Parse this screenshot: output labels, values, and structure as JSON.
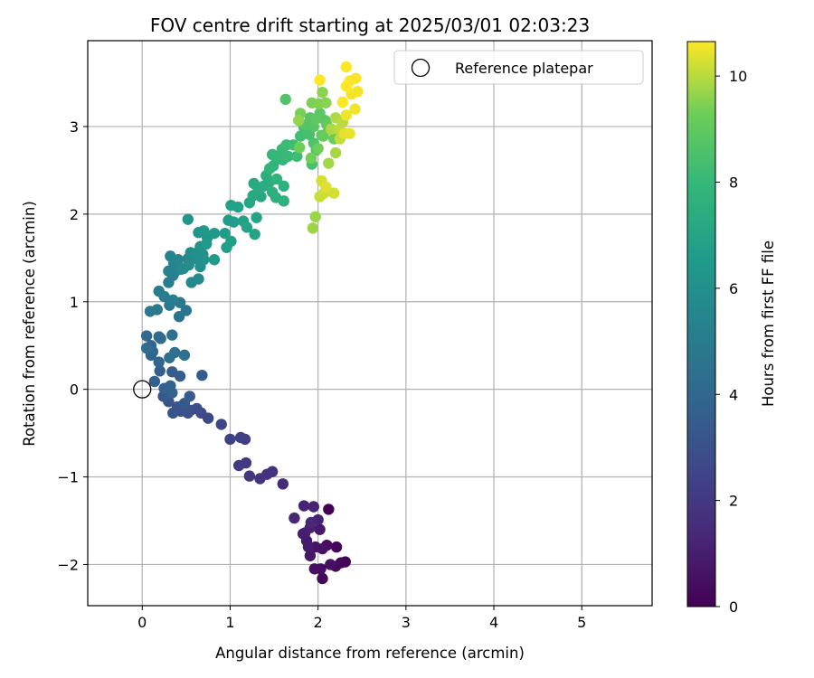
{
  "chart_data": {
    "type": "scatter",
    "title": "FOV centre drift starting at 2025/03/01 02:03:23",
    "xlabel": "Angular distance from reference (arcmin)",
    "ylabel": "Rotation from reference (arcmin)",
    "xlim": [
      -0.62,
      5.8
    ],
    "ylim": [
      -2.47,
      3.98
    ],
    "xticks": [
      0,
      1,
      2,
      3,
      4,
      5
    ],
    "yticks": [
      -2,
      -1,
      0,
      1,
      2,
      3
    ],
    "grid": true,
    "colormap": "viridis",
    "colorbar": {
      "label": "Hours from first FF file",
      "range": [
        0,
        10.65
      ],
      "ticks": [
        0,
        2,
        4,
        6,
        8,
        10
      ]
    },
    "legend": {
      "placement": "top-right",
      "entries": [
        {
          "label": "Reference platepar",
          "marker": "open-circle"
        }
      ]
    },
    "reference_point": {
      "label": "Reference platepar",
      "x": 0,
      "y": 0
    },
    "series": [
      {
        "columns": [
          "x",
          "y",
          "hours"
        ],
        "points": [
          [
            2.12,
            -1.37,
            0.05
          ],
          [
            2.21,
            -1.8,
            0.1
          ],
          [
            2.31,
            -1.97,
            0.15
          ],
          [
            2.26,
            -1.98,
            0.2
          ],
          [
            2.05,
            -2.16,
            0.25
          ],
          [
            2.2,
            -2.02,
            0.3
          ],
          [
            2.1,
            -1.78,
            0.35
          ],
          [
            2.03,
            -2.05,
            0.45
          ],
          [
            1.96,
            -2.05,
            0.5
          ],
          [
            2.14,
            -2.0,
            0.55
          ],
          [
            2.05,
            -1.82,
            0.6
          ],
          [
            1.97,
            -1.8,
            0.65
          ],
          [
            1.91,
            -1.9,
            0.7
          ],
          [
            2.02,
            -1.6,
            0.8
          ],
          [
            1.87,
            -1.73,
            0.85
          ],
          [
            1.89,
            -1.8,
            0.9
          ],
          [
            1.85,
            -1.64,
            0.95
          ],
          [
            1.83,
            -1.65,
            1.0
          ],
          [
            1.91,
            -1.58,
            1.05
          ],
          [
            2.0,
            -1.49,
            1.1
          ],
          [
            1.95,
            -1.34,
            1.15
          ],
          [
            1.84,
            -1.33,
            1.2
          ],
          [
            1.73,
            -1.47,
            1.3
          ],
          [
            1.92,
            -1.52,
            1.35
          ],
          [
            1.6,
            -1.08,
            1.5
          ],
          [
            1.48,
            -0.94,
            1.6
          ],
          [
            1.42,
            -0.97,
            1.7
          ],
          [
            1.34,
            -1.02,
            1.8
          ],
          [
            1.22,
            -0.99,
            1.9
          ],
          [
            1.18,
            -0.84,
            2.0
          ],
          [
            1.1,
            -0.87,
            2.1
          ],
          [
            1.17,
            -0.57,
            2.2
          ],
          [
            1.12,
            -0.55,
            2.3
          ],
          [
            1.0,
            -0.57,
            2.4
          ],
          [
            0.9,
            -0.4,
            2.5
          ],
          [
            0.75,
            -0.33,
            2.6
          ],
          [
            0.67,
            -0.27,
            2.7
          ],
          [
            0.62,
            -0.22,
            2.8
          ],
          [
            0.55,
            -0.24,
            2.9
          ],
          [
            0.52,
            -0.27,
            3.0
          ],
          [
            0.44,
            -0.25,
            3.05
          ],
          [
            0.4,
            -0.2,
            3.1
          ],
          [
            0.35,
            -0.27,
            3.15
          ],
          [
            0.3,
            -0.14,
            3.2
          ],
          [
            0.24,
            -0.08,
            3.3
          ],
          [
            0.48,
            -0.16,
            3.35
          ],
          [
            0.68,
            0.16,
            3.4
          ],
          [
            0.54,
            -0.08,
            3.45
          ],
          [
            0.43,
            0.15,
            3.5
          ],
          [
            0.34,
            0.2,
            3.55
          ],
          [
            0.2,
            0.21,
            3.6
          ],
          [
            0.14,
            0.09,
            3.65
          ],
          [
            0.32,
            0.04,
            3.7
          ],
          [
            0.25,
            0.01,
            3.75
          ],
          [
            0.34,
            -0.04,
            3.8
          ],
          [
            0.12,
            0.43,
            3.85
          ],
          [
            0.19,
            0.31,
            3.9
          ],
          [
            0.1,
            0.39,
            3.95
          ],
          [
            0.05,
            0.61,
            4.0
          ],
          [
            0.1,
            0.5,
            4.05
          ],
          [
            0.19,
            0.6,
            4.1
          ],
          [
            0.21,
            0.58,
            4.15
          ],
          [
            0.05,
            0.47,
            4.2
          ],
          [
            0.31,
            0.36,
            4.3
          ],
          [
            0.37,
            0.42,
            4.4
          ],
          [
            0.48,
            0.39,
            4.45
          ],
          [
            0.34,
            0.62,
            4.5
          ],
          [
            0.42,
            0.83,
            4.6
          ],
          [
            0.5,
            0.9,
            4.65
          ],
          [
            0.43,
            0.99,
            4.75
          ],
          [
            0.31,
            0.96,
            4.8
          ],
          [
            0.09,
            0.89,
            4.85
          ],
          [
            0.17,
            0.91,
            4.9
          ],
          [
            0.19,
            1.12,
            5.0
          ],
          [
            0.25,
            1.06,
            5.05
          ],
          [
            0.35,
            1.02,
            5.1
          ],
          [
            0.3,
            1.22,
            5.15
          ],
          [
            0.35,
            1.3,
            5.2
          ],
          [
            0.3,
            1.35,
            5.25
          ],
          [
            0.37,
            1.34,
            5.3
          ],
          [
            0.32,
            1.52,
            5.35
          ],
          [
            0.36,
            1.44,
            5.45
          ],
          [
            0.41,
            1.48,
            5.5
          ],
          [
            0.52,
            1.49,
            5.55
          ],
          [
            0.44,
            1.37,
            5.6
          ],
          [
            0.56,
            1.22,
            5.65
          ],
          [
            0.64,
            1.26,
            5.7
          ],
          [
            0.47,
            1.38,
            5.75
          ],
          [
            0.53,
            1.42,
            5.8
          ],
          [
            0.55,
            1.56,
            5.85
          ],
          [
            0.62,
            1.49,
            5.9
          ],
          [
            0.6,
            1.55,
            5.95
          ],
          [
            0.69,
            1.54,
            6.0
          ],
          [
            0.66,
            1.4,
            6.05
          ],
          [
            0.7,
            1.48,
            6.1
          ],
          [
            0.66,
            1.63,
            6.15
          ],
          [
            0.74,
            1.73,
            6.2
          ],
          [
            0.64,
            1.79,
            6.25
          ],
          [
            0.52,
            1.94,
            6.3
          ],
          [
            0.7,
            1.81,
            6.35
          ],
          [
            0.82,
            1.78,
            6.4
          ],
          [
            0.73,
            1.66,
            6.45
          ],
          [
            0.82,
            1.48,
            6.5
          ],
          [
            0.94,
            1.78,
            6.55
          ],
          [
            0.98,
            1.93,
            6.6
          ],
          [
            1.04,
            1.91,
            6.65
          ],
          [
            0.96,
            1.62,
            6.7
          ],
          [
            1.01,
            1.69,
            6.75
          ],
          [
            1.01,
            2.1,
            6.8
          ],
          [
            1.09,
            2.08,
            6.85
          ],
          [
            1.15,
            1.92,
            6.9
          ],
          [
            1.19,
            1.85,
            6.95
          ],
          [
            1.28,
            1.77,
            7.0
          ],
          [
            1.3,
            1.96,
            7.05
          ],
          [
            1.22,
            2.13,
            7.1
          ],
          [
            1.26,
            2.21,
            7.15
          ],
          [
            1.35,
            2.2,
            7.2
          ],
          [
            1.27,
            2.35,
            7.25
          ],
          [
            1.32,
            2.29,
            7.3
          ],
          [
            1.38,
            2.32,
            7.35
          ],
          [
            1.45,
            2.37,
            7.4
          ],
          [
            1.41,
            2.44,
            7.45
          ],
          [
            1.48,
            2.25,
            7.5
          ],
          [
            1.52,
            2.19,
            7.55
          ],
          [
            1.61,
            2.32,
            7.6
          ],
          [
            1.61,
            2.15,
            7.65
          ],
          [
            1.53,
            2.4,
            7.7
          ],
          [
            1.49,
            2.55,
            7.75
          ],
          [
            1.45,
            2.52,
            7.8
          ],
          [
            1.53,
            2.62,
            7.85
          ],
          [
            1.6,
            2.62,
            7.9
          ],
          [
            1.48,
            2.68,
            7.95
          ],
          [
            1.53,
            2.66,
            8.0
          ],
          [
            1.59,
            2.74,
            8.05
          ],
          [
            1.66,
            2.66,
            8.1
          ],
          [
            1.64,
            2.79,
            8.15
          ],
          [
            1.76,
            2.66,
            8.2
          ],
          [
            1.72,
            2.79,
            8.25
          ],
          [
            1.8,
            2.89,
            8.3
          ],
          [
            1.84,
            2.99,
            8.35
          ],
          [
            1.9,
            2.91,
            8.4
          ],
          [
            1.94,
            3.02,
            8.45
          ],
          [
            1.93,
            2.57,
            8.5
          ],
          [
            1.98,
            2.73,
            8.55
          ],
          [
            1.95,
            2.81,
            8.6
          ],
          [
            1.63,
            3.31,
            8.65
          ],
          [
            1.85,
            3.02,
            8.7
          ],
          [
            1.91,
            3.1,
            8.75
          ],
          [
            1.95,
            3.0,
            8.8
          ],
          [
            2.02,
            3.15,
            8.85
          ],
          [
            2.08,
            3.07,
            8.9
          ],
          [
            2.04,
            2.9,
            8.95
          ],
          [
            1.98,
            3.09,
            9.0
          ],
          [
            2.1,
            3.02,
            9.05
          ],
          [
            2.12,
            2.97,
            9.1
          ],
          [
            2.06,
            2.89,
            9.15
          ],
          [
            2.18,
            2.86,
            9.2
          ],
          [
            2.0,
            2.75,
            9.25
          ],
          [
            1.79,
            2.76,
            9.3
          ],
          [
            1.92,
            2.64,
            9.35
          ],
          [
            1.8,
            3.15,
            9.4
          ],
          [
            1.93,
            3.27,
            9.45
          ],
          [
            2.01,
            3.26,
            9.5
          ],
          [
            2.09,
            3.27,
            9.55
          ],
          [
            2.05,
            3.39,
            9.6
          ],
          [
            1.78,
            3.07,
            9.65
          ],
          [
            1.97,
            1.97,
            9.7
          ],
          [
            1.94,
            1.84,
            9.75
          ],
          [
            2.12,
            2.58,
            9.8
          ],
          [
            2.2,
            2.7,
            9.85
          ],
          [
            2.15,
            2.97,
            9.9
          ],
          [
            2.2,
            3.1,
            9.95
          ],
          [
            2.28,
            3.05,
            10.0
          ],
          [
            2.24,
            2.97,
            10.05
          ],
          [
            2.25,
            2.86,
            10.1
          ],
          [
            2.02,
            2.2,
            10.15
          ],
          [
            2.07,
            2.24,
            10.2
          ],
          [
            2.18,
            2.24,
            10.25
          ],
          [
            2.04,
            2.38,
            10.3
          ],
          [
            2.09,
            2.31,
            10.35
          ],
          [
            2.3,
            2.92,
            10.4
          ],
          [
            2.36,
            2.92,
            10.45
          ],
          [
            2.32,
            3.13,
            10.5
          ],
          [
            2.42,
            3.2,
            10.52
          ],
          [
            2.38,
            3.37,
            10.55
          ],
          [
            2.45,
            3.4,
            10.57
          ],
          [
            2.36,
            3.52,
            10.6
          ],
          [
            2.43,
            3.55,
            10.62
          ],
          [
            2.32,
            3.46,
            10.63
          ],
          [
            2.28,
            3.28,
            10.64
          ],
          [
            2.02,
            3.53,
            10.65
          ],
          [
            2.32,
            3.68,
            10.65
          ]
        ]
      }
    ]
  }
}
